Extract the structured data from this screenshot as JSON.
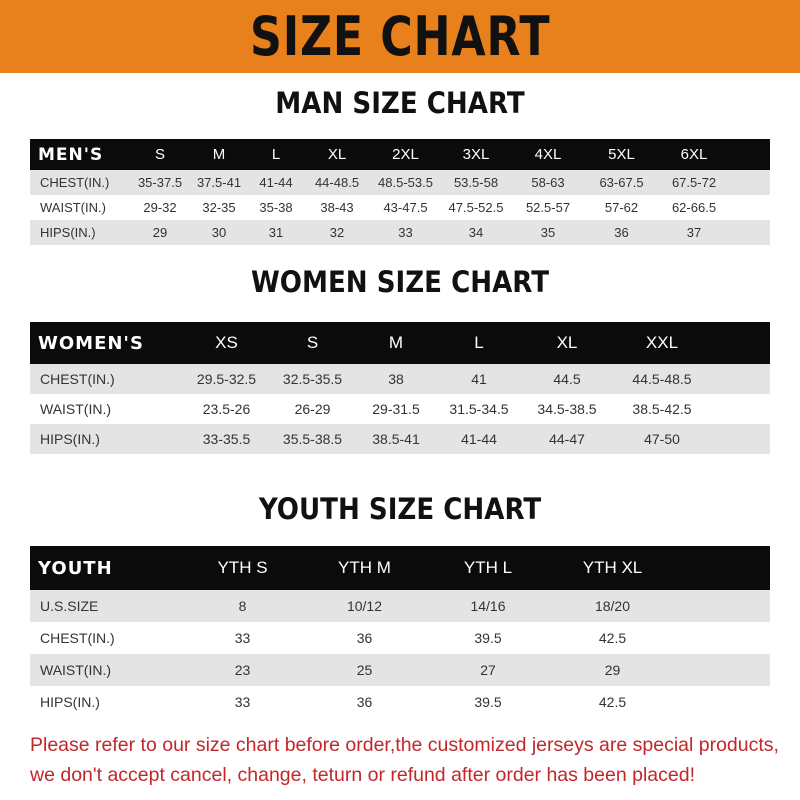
{
  "banner": {
    "title": "SIZE CHART",
    "color": "#e8801c"
  },
  "men": {
    "title": "MAN SIZE CHART",
    "header": "MEN'S",
    "sizes": [
      "S",
      "M",
      "L",
      "XL",
      "2XL",
      "3XL",
      "4XL",
      "5XL",
      "6XL"
    ],
    "rows": [
      {
        "label": "CHEST(IN.)",
        "values": [
          "35-37.5",
          "37.5-41",
          "41-44",
          "44-48.5",
          "48.5-53.5",
          "53.5-58",
          "58-63",
          "63-67.5",
          "67.5-72"
        ]
      },
      {
        "label": "WAIST(IN.)",
        "values": [
          "29-32",
          "32-35",
          "35-38",
          "38-43",
          "43-47.5",
          "47.5-52.5",
          "52.5-57",
          "57-62",
          "62-66.5"
        ]
      },
      {
        "label": "HIPS(IN.)",
        "values": [
          "29",
          "30",
          "31",
          "32",
          "33",
          "34",
          "35",
          "36",
          "37"
        ]
      }
    ]
  },
  "women": {
    "title": "WOMEN SIZE CHART",
    "header": "WOMEN'S",
    "sizes": [
      "XS",
      "S",
      "M",
      "L",
      "XL",
      "XXL"
    ],
    "rows": [
      {
        "label": "CHEST(IN.)",
        "values": [
          "29.5-32.5",
          "32.5-35.5",
          "38",
          "41",
          "44.5",
          "44.5-48.5"
        ]
      },
      {
        "label": "WAIST(IN.)",
        "values": [
          "23.5-26",
          "26-29",
          "29-31.5",
          "31.5-34.5",
          "34.5-38.5",
          "38.5-42.5"
        ]
      },
      {
        "label": "HIPS(IN.)",
        "values": [
          "33-35.5",
          "35.5-38.5",
          "38.5-41",
          "41-44",
          "44-47",
          "47-50"
        ]
      }
    ]
  },
  "youth": {
    "title": "YOUTH SIZE CHART",
    "header": "YOUTH",
    "sizes": [
      "YTH S",
      "YTH M",
      "YTH L",
      "YTH XL"
    ],
    "rows": [
      {
        "label": "U.S.SIZE",
        "values": [
          "8",
          "10/12",
          "14/16",
          "18/20"
        ]
      },
      {
        "label": "CHEST(IN.)",
        "values": [
          "33",
          "36",
          "39.5",
          "42.5"
        ]
      },
      {
        "label": "WAIST(IN.)",
        "values": [
          "23",
          "25",
          "27",
          "29"
        ]
      },
      {
        "label": "HIPS(IN.)",
        "values": [
          "33",
          "36",
          "39.5",
          "42.5"
        ]
      }
    ]
  },
  "notice": {
    "line1": "Please refer to our size chart before order,the customized jerseys are special products,",
    "line2": "we don't accept cancel, change, teturn or refund after order has been placed!",
    "color": "#c0282a"
  }
}
